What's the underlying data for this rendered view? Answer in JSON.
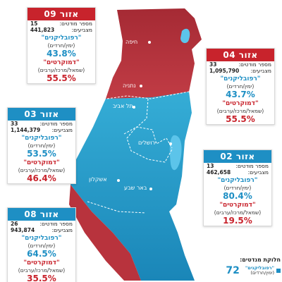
{
  "zones": [
    {
      "label": "אזור 09",
      "voters_label": "מספר מודטים:",
      "voters": "15",
      "electors_label": "מצביעים:",
      "electors": "441,823",
      "rep_label": "\"רפובליקנים\"",
      "rep_sub": "(ימין/חרדים)",
      "rep_pct": "43.8%",
      "dem_label": "\"דמוקרטים\"",
      "dem_sub": "(שמאל/מרכז/ערבים)",
      "dem_pct": "55.5%"
    },
    {
      "label": "אזור 04",
      "voters_label": "מספר מודטים:",
      "voters": "33",
      "electors_label": "מצביעים:",
      "electors": "1,095,790",
      "rep_label": "\"רפובליקנים\"",
      "rep_sub": "(ימין/חרדים)",
      "rep_pct": "43.7%",
      "dem_label": "\"דמוקרטים\"",
      "dem_sub": "(שמאל/מרכז/ערבים)",
      "dem_pct": "55.5%"
    },
    {
      "label": "אזור 03",
      "voters_label": "מספר מודטים:",
      "voters": "33",
      "electors_label": "מצביעים:",
      "electors": "1,144,379",
      "rep_label": "\"רפובליקנים\"",
      "rep_sub": "(ימין/חרדים)",
      "rep_pct": "53.5%",
      "dem_label": "\"דמוקרטים\"",
      "dem_sub": "(שמאל/מרכז/ערבים)",
      "dem_pct": "46.4%"
    },
    {
      "label": "אזור 02",
      "voters_label": "מספר מודטים:",
      "voters": "13",
      "electors_label": "מצביעים:",
      "electors": "462,658",
      "rep_label": "\"רפובליקנים\"",
      "rep_sub": "(ימין/חרדים)",
      "rep_pct": "80.4%",
      "dem_label": "\"דמוקרטים\"",
      "dem_sub": "(שמאל/מרכז/ערבים)",
      "dem_pct": "19.5%"
    },
    {
      "label": "אזור 08",
      "voters_label": "מספר מודטים:",
      "voters": "26",
      "electors_label": "מצביעים:",
      "electors": "943,874",
      "rep_label": "\"רפובליקנים\"",
      "rep_sub": "(ימין/חרדים)",
      "rep_pct": "64.5%",
      "dem_label": "\"דמוקרטים\"",
      "dem_sub": "(שמאל/מרכז/ערבים)",
      "dem_pct": "35.5%"
    }
  ],
  "cities": {
    "haifa": "חיפה",
    "netanya": "נתניה",
    "telaviv": "תל אביב",
    "jerusalem": "ירושלים",
    "ashkelon": "אשקלון",
    "beersheba": "באר שבע"
  },
  "legend": {
    "title": "חלוקת מנדטים:",
    "rep_label": "\"רפובליקנים\"",
    "rep_sub": "(ימין/חרדים)",
    "rep_seats": "72"
  },
  "colors": {
    "red_region": "#b8333d",
    "blue_region": "#2ea3cf",
    "red_accent": "#c8232c",
    "blue_accent": "#1e8fc4"
  }
}
